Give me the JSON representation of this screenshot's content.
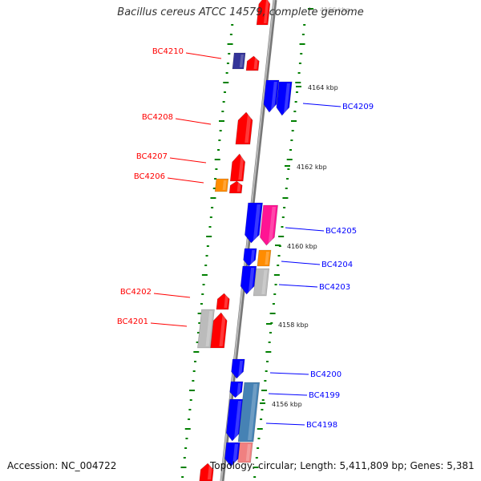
{
  "title": "Bacillus cereus ATCC 14579, complete genome",
  "footer": {
    "accession": "Accession: NC_004722",
    "topology": "Topology: circular; Length: 5,411,809 bp; Genes: 5,381"
  },
  "colors": {
    "red": "#ff0000",
    "blue": "#0000ff",
    "magenta": "#ff1493",
    "orange": "#ff8c00",
    "gray": "#bbbbbb",
    "navy": "#333399",
    "steelblue": "#4682b4",
    "pink": "#f08080",
    "tick": "#008000",
    "backbone": "#888888"
  },
  "scale_labels": [
    {
      "text": "4166 kbp"
    },
    {
      "text": "4164 kbp"
    },
    {
      "text": "4162 kbp"
    },
    {
      "text": "4160 kbp"
    },
    {
      "text": "4158 kbp"
    },
    {
      "text": "4156 kbp"
    }
  ],
  "left_labels": [
    {
      "text": "BC4210"
    },
    {
      "text": "BC4208"
    },
    {
      "text": "BC4207"
    },
    {
      "text": "BC4206"
    },
    {
      "text": "BC4202"
    },
    {
      "text": "BC4201"
    }
  ],
  "right_labels": [
    {
      "text": "BC4209"
    },
    {
      "text": "BC4205"
    },
    {
      "text": "BC4204"
    },
    {
      "text": "BC4203"
    },
    {
      "text": "BC4200"
    },
    {
      "text": "BC4199"
    },
    {
      "text": "BC4198"
    }
  ],
  "genes": [
    {
      "color": "red"
    },
    {
      "color": "navy"
    },
    {
      "color": "red"
    },
    {
      "color": "blue"
    },
    {
      "color": "blue"
    },
    {
      "color": "red"
    },
    {
      "color": "red"
    },
    {
      "color": "orange"
    },
    {
      "color": "red"
    },
    {
      "color": "blue"
    },
    {
      "color": "magenta"
    },
    {
      "color": "blue"
    },
    {
      "color": "orange"
    },
    {
      "color": "blue"
    },
    {
      "color": "gray"
    },
    {
      "color": "red"
    },
    {
      "color": "gray"
    },
    {
      "color": "red"
    },
    {
      "color": "blue"
    },
    {
      "color": "blue"
    },
    {
      "color": "blue"
    },
    {
      "color": "steelblue"
    },
    {
      "color": "blue"
    },
    {
      "color": "pink"
    },
    {
      "color": "red"
    }
  ]
}
